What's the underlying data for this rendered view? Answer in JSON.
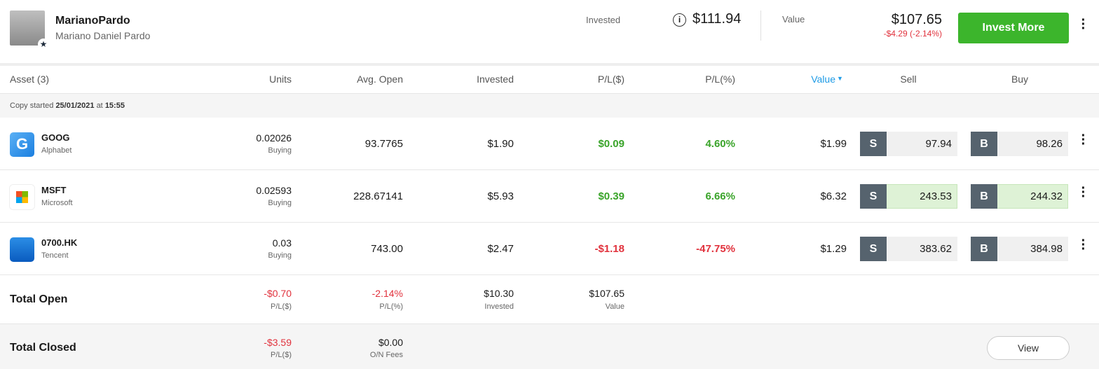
{
  "header": {
    "username": "MarianoPardo",
    "full_name": "Mariano Daniel Pardo",
    "invested_label": "Invested",
    "invested": "$111.94",
    "value_label": "Value",
    "value": "$107.65",
    "change": "-$4.29 (-2.14%)",
    "button": "Invest More"
  },
  "table": {
    "columns": [
      "Asset (3)",
      "Units",
      "Avg. Open",
      "Invested",
      "P/L($)",
      "P/L(%)",
      "Value",
      "Sell",
      "Buy"
    ],
    "copy_started": {
      "prefix": "Copy started",
      "date": "25/01/2021",
      "at": "at",
      "time": "15:55"
    },
    "sell_label": "S",
    "buy_label": "B",
    "rows": [
      {
        "symbol": "GOOG",
        "name": "Alphabet",
        "units": "0.02026",
        "units_note": "Buying",
        "avg_open": "93.7765",
        "invested": "$1.90",
        "pl": "$0.09",
        "pl_pct": "4.60%",
        "value": "$1.99",
        "sell": "97.94",
        "buy": "98.26",
        "highlight": false
      },
      {
        "symbol": "MSFT",
        "name": "Microsoft",
        "units": "0.02593",
        "units_note": "Buying",
        "avg_open": "228.67141",
        "invested": "$5.93",
        "pl": "$0.39",
        "pl_pct": "6.66%",
        "value": "$6.32",
        "sell": "243.53",
        "buy": "244.32",
        "highlight": true
      },
      {
        "symbol": "0700.HK",
        "name": "Tencent",
        "units": "0.03",
        "units_note": "Buying",
        "avg_open": "743.00",
        "invested": "$2.47",
        "pl": "-$1.18",
        "pl_pct": "-47.75%",
        "value": "$1.29",
        "sell": "383.62",
        "buy": "384.98",
        "highlight": false
      }
    ]
  },
  "totals": {
    "open": {
      "label": "Total Open",
      "pl": "-$0.70",
      "pl_label": "P/L($)",
      "pl_pct": "-2.14%",
      "pl_pct_label": "P/L(%)",
      "invested": "$10.30",
      "invested_label": "Invested",
      "value": "$107.65",
      "value_label": "Value"
    },
    "closed": {
      "label": "Total Closed",
      "pl": "-$3.59",
      "pl_label": "P/L($)",
      "fees": "$0.00",
      "fees_label": "O/N Fees",
      "button": "View"
    }
  }
}
